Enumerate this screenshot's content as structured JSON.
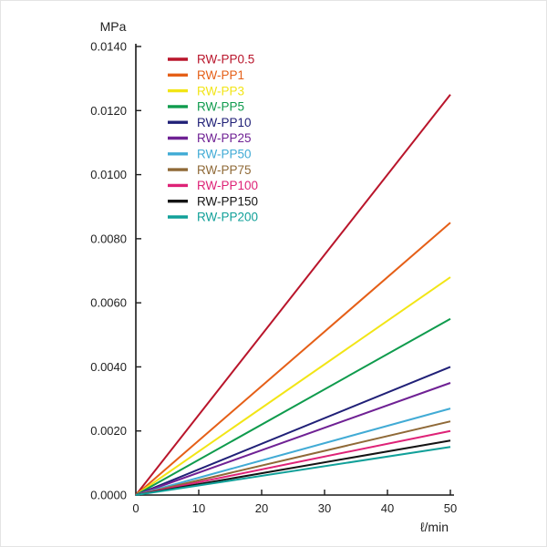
{
  "chart_data": {
    "type": "line",
    "title": "",
    "ylabel": "MPa",
    "xlabel": "ℓ/min",
    "xlim": [
      0,
      50
    ],
    "ylim": [
      0,
      0.014
    ],
    "x": [
      0,
      50
    ],
    "x_ticks": [
      0,
      10,
      20,
      30,
      40,
      50
    ],
    "x_tick_labels": [
      "0",
      "10",
      "20",
      "30",
      "40",
      "50"
    ],
    "y_ticks": [
      0,
      0.002,
      0.004,
      0.006,
      0.008,
      0.01,
      0.012,
      0.014
    ],
    "y_tick_labels": [
      "0.0000",
      "0.0020",
      "0.0040",
      "0.0060",
      "0.0080",
      "0.0100",
      "0.0120",
      "0.0140"
    ],
    "grid": false,
    "legend_position": "upper-left-inside",
    "axis_color": "#1a1a1a",
    "series": [
      {
        "name": "RW-PP0.5",
        "color": "#b9152b",
        "values": [
          0,
          0.0125
        ]
      },
      {
        "name": "RW-PP1",
        "color": "#e55f17",
        "values": [
          0,
          0.0085
        ]
      },
      {
        "name": "RW-PP3",
        "color": "#f2e516",
        "values": [
          0,
          0.0068
        ]
      },
      {
        "name": "RW-PP5",
        "color": "#0f9b4d",
        "values": [
          0,
          0.0055
        ]
      },
      {
        "name": "RW-PP10",
        "color": "#202077",
        "values": [
          0,
          0.004
        ]
      },
      {
        "name": "RW-PP25",
        "color": "#6f2194",
        "values": [
          0,
          0.0035
        ]
      },
      {
        "name": "RW-PP50",
        "color": "#41abd5",
        "values": [
          0,
          0.0027
        ]
      },
      {
        "name": "RW-PP75",
        "color": "#8f6937",
        "values": [
          0,
          0.0023
        ]
      },
      {
        "name": "RW-PP100",
        "color": "#de2277",
        "values": [
          0,
          0.002
        ]
      },
      {
        "name": "RW-PP150",
        "color": "#141414",
        "values": [
          0,
          0.0017
        ]
      },
      {
        "name": "RW-PP200",
        "color": "#11a099",
        "values": [
          0,
          0.0015
        ]
      }
    ]
  }
}
